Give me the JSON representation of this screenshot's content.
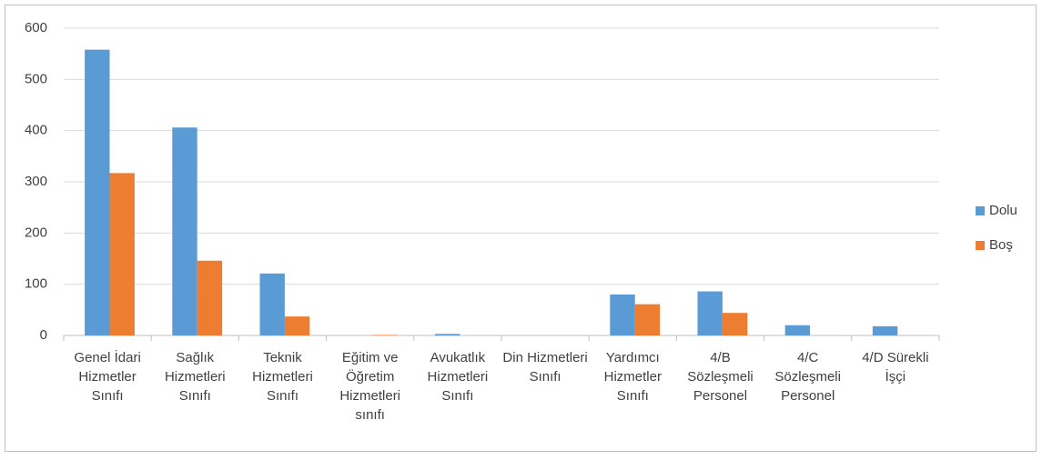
{
  "chart_data": {
    "type": "bar",
    "categories": [
      "Genel İdari Hizmetler Sınıfı",
      "Sağlık Hizmetleri Sınıfı",
      "Teknik Hizmetleri Sınıfı",
      "Eğitim ve Öğretim Hizmetleri sınıfı",
      "Avukatlık Hizmetleri Sınıfı",
      "Din Hizmetleri Sınıfı",
      "Yardımcı Hizmetler Sınıfı",
      "4/B Sözleşmeli Personel",
      "4/C Sözleşmeli Personel",
      "4/D Sürekli İşçi"
    ],
    "series": [
      {
        "name": "Dolu",
        "color": "#5b9bd5",
        "values": [
          558,
          406,
          121,
          0,
          3,
          0,
          80,
          86,
          20,
          18
        ]
      },
      {
        "name": "Boş",
        "color": "#ed7d31",
        "values": [
          317,
          146,
          37,
          1,
          0,
          0,
          61,
          44,
          0,
          0
        ]
      }
    ],
    "ylim": [
      0,
      600
    ],
    "yticks": [
      0,
      100,
      200,
      300,
      400,
      500,
      600
    ],
    "grid": true,
    "legend": "right"
  }
}
